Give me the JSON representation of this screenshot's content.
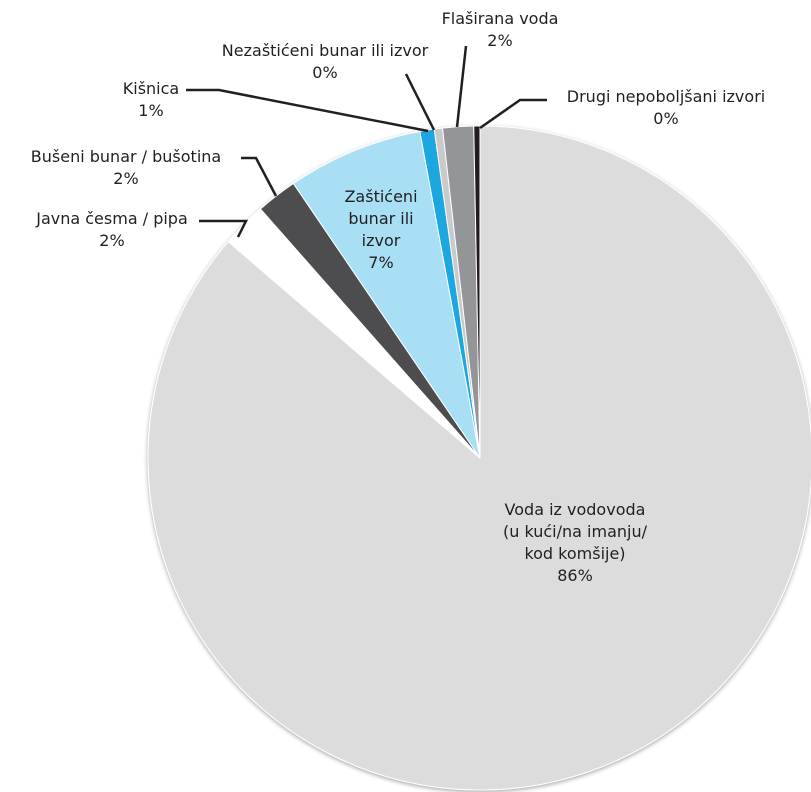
{
  "chart_data": {
    "type": "pie",
    "title": "",
    "slices": [
      {
        "label_lines": [
          "Voda iz vodovoda",
          "(u kući/na imanju/",
          "kod komšije)"
        ],
        "value_label": "86%",
        "value": 86.3,
        "color": "#dcdcdd"
      },
      {
        "label_lines": [
          "Javna česma / pipa"
        ],
        "value_label": "2%",
        "value": 2.2,
        "color": "#ffffff"
      },
      {
        "label_lines": [
          "Bušeni bunar / bušotina"
        ],
        "value_label": "2%",
        "value": 2.0,
        "color": "#4d4e50"
      },
      {
        "label_lines": [
          "Zaštićeni",
          "bunar ili",
          "izvor"
        ],
        "value_label": "7%",
        "value": 6.6,
        "color": "#a8dff5"
      },
      {
        "label_lines": [
          "Kišnica"
        ],
        "value_label": "1%",
        "value": 0.7,
        "color": "#1aa7e0"
      },
      {
        "label_lines": [
          "Nezaštićeni bunar ili izvor"
        ],
        "value_label": "0%",
        "value": 0.4,
        "color": "#c9cacb"
      },
      {
        "label_lines": [
          "Flaširana voda"
        ],
        "value_label": "2%",
        "value": 1.5,
        "color": "#939598"
      },
      {
        "label_lines": [
          "Drugi nepoboljšani izvori"
        ],
        "value_label": "0%",
        "value": 0.3,
        "color": "#231f20"
      }
    ]
  }
}
